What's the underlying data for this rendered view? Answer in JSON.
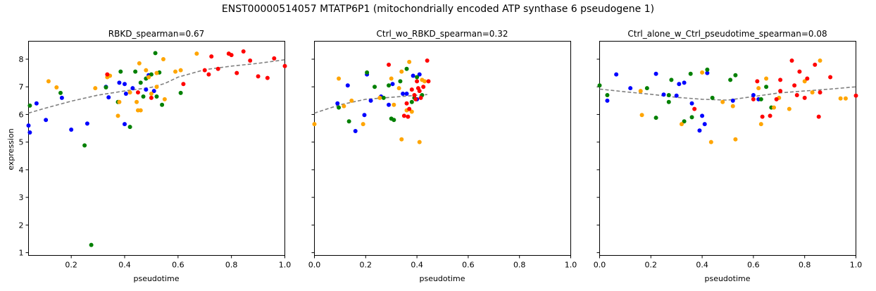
{
  "figure_title": "ENST00000514057  MTATP6P1  (mitochondrially encoded ATP synthase 6 pseudogene 1)",
  "colors": {
    "blue": "#0000ff",
    "green": "#008000",
    "orange": "#ffa500",
    "red": "#ff0000",
    "trend": "#808080"
  },
  "chart_data": [
    {
      "type": "scatter",
      "title": "RBKD_spearman=0.67",
      "xlabel": "pseudotime",
      "ylabel": "expression",
      "xlim": [
        0.04,
        1.0
      ],
      "ylim": [
        0.9,
        8.65
      ],
      "xticks": [
        "0.2",
        "0.4",
        "0.6",
        "0.8",
        "1.0"
      ],
      "xtick_values": [
        0.2,
        0.4,
        0.6,
        0.8,
        1.0
      ],
      "yticks": [
        "1",
        "2",
        "3",
        "4",
        "5",
        "6",
        "7",
        "8"
      ],
      "ytick_values": [
        1,
        2,
        3,
        4,
        5,
        6,
        7,
        8
      ],
      "grid": false,
      "series": [
        {
          "color": "blue",
          "points": [
            [
              0.04,
              5.6
            ],
            [
              0.045,
              5.35
            ],
            [
              0.07,
              6.4
            ],
            [
              0.105,
              5.8
            ],
            [
              0.165,
              6.6
            ],
            [
              0.2,
              5.45
            ],
            [
              0.26,
              5.67
            ],
            [
              0.33,
              7.0
            ],
            [
              0.34,
              6.62
            ],
            [
              0.38,
              7.15
            ],
            [
              0.4,
              7.1
            ],
            [
              0.4,
              5.65
            ],
            [
              0.405,
              6.75
            ],
            [
              0.43,
              6.95
            ],
            [
              0.48,
              6.9
            ],
            [
              0.49,
              7.42
            ],
            [
              0.51,
              6.85
            ]
          ]
        },
        {
          "color": "green",
          "points": [
            [
              0.045,
              6.32
            ],
            [
              0.16,
              6.78
            ],
            [
              0.25,
              4.88
            ],
            [
              0.275,
              1.28
            ],
            [
              0.33,
              6.98
            ],
            [
              0.375,
              6.45
            ],
            [
              0.385,
              7.55
            ],
            [
              0.42,
              5.55
            ],
            [
              0.44,
              7.55
            ],
            [
              0.46,
              7.15
            ],
            [
              0.47,
              6.65
            ],
            [
              0.48,
              7.3
            ],
            [
              0.5,
              7.45
            ],
            [
              0.515,
              8.22
            ],
            [
              0.52,
              6.65
            ],
            [
              0.53,
              7.52
            ],
            [
              0.54,
              6.35
            ],
            [
              0.61,
              6.78
            ]
          ]
        },
        {
          "color": "orange",
          "points": [
            [
              0.115,
              7.2
            ],
            [
              0.145,
              6.98
            ],
            [
              0.29,
              6.95
            ],
            [
              0.335,
              7.35
            ],
            [
              0.345,
              7.4
            ],
            [
              0.375,
              5.95
            ],
            [
              0.38,
              6.45
            ],
            [
              0.42,
              6.8
            ],
            [
              0.445,
              6.45
            ],
            [
              0.45,
              6.15
            ],
            [
              0.455,
              7.85
            ],
            [
              0.46,
              6.15
            ],
            [
              0.48,
              7.6
            ],
            [
              0.49,
              7.35
            ],
            [
              0.5,
              6.75
            ],
            [
              0.52,
              7.5
            ],
            [
              0.52,
              7.0
            ],
            [
              0.545,
              8.0
            ],
            [
              0.55,
              6.55
            ],
            [
              0.59,
              7.55
            ],
            [
              0.61,
              7.6
            ],
            [
              0.67,
              8.2
            ],
            [
              0.79,
              8.2
            ]
          ]
        },
        {
          "color": "red",
          "points": [
            [
              0.335,
              7.45
            ],
            [
              0.45,
              6.8
            ],
            [
              0.5,
              6.6
            ],
            [
              0.62,
              7.1
            ],
            [
              0.7,
              7.6
            ],
            [
              0.715,
              7.45
            ],
            [
              0.725,
              8.1
            ],
            [
              0.75,
              7.65
            ],
            [
              0.79,
              8.2
            ],
            [
              0.8,
              8.15
            ],
            [
              0.82,
              7.5
            ],
            [
              0.845,
              8.28
            ],
            [
              0.87,
              7.95
            ],
            [
              0.9,
              7.38
            ],
            [
              0.935,
              7.32
            ],
            [
              0.96,
              8.03
            ],
            [
              1.0,
              7.75
            ]
          ]
        }
      ],
      "trend": [
        [
          0.04,
          6.05
        ],
        [
          0.1,
          6.22
        ],
        [
          0.2,
          6.48
        ],
        [
          0.3,
          6.7
        ],
        [
          0.4,
          6.85
        ],
        [
          0.5,
          6.98
        ],
        [
          0.55,
          7.12
        ],
        [
          0.6,
          7.35
        ],
        [
          0.7,
          7.62
        ],
        [
          0.8,
          7.75
        ],
        [
          0.9,
          7.85
        ],
        [
          1.0,
          7.98
        ]
      ]
    },
    {
      "type": "scatter",
      "title": "Ctrl_wo_RBKD_spearman=0.32",
      "xlabel": "pseudotime",
      "ylabel": "",
      "xlim": [
        0.0,
        1.0
      ],
      "ylim": [
        0.9,
        8.65
      ],
      "xticks": [
        "0.0",
        "0.2",
        "0.4",
        "0.6",
        "0.8",
        "1.0"
      ],
      "xtick_values": [
        0.0,
        0.2,
        0.4,
        0.6,
        0.8,
        1.0
      ],
      "yticks": [],
      "ytick_values": [
        1,
        2,
        3,
        4,
        5,
        6,
        7,
        8
      ],
      "grid": false,
      "series": [
        {
          "color": "blue",
          "points": [
            [
              0.09,
              6.4
            ],
            [
              0.13,
              7.05
            ],
            [
              0.16,
              5.4
            ],
            [
              0.195,
              5.98
            ],
            [
              0.205,
              7.45
            ],
            [
              0.22,
              6.5
            ],
            [
              0.26,
              6.65
            ],
            [
              0.29,
              6.35
            ],
            [
              0.305,
              7.1
            ],
            [
              0.345,
              6.75
            ],
            [
              0.36,
              6.75
            ],
            [
              0.385,
              7.4
            ],
            [
              0.4,
              6.55
            ],
            [
              0.41,
              7.45
            ]
          ]
        },
        {
          "color": "green",
          "points": [
            [
              0.095,
              6.25
            ],
            [
              0.135,
              5.75
            ],
            [
              0.205,
              7.52
            ],
            [
              0.235,
              7.0
            ],
            [
              0.27,
              6.6
            ],
            [
              0.29,
              7.05
            ],
            [
              0.3,
              5.85
            ],
            [
              0.31,
              5.8
            ],
            [
              0.335,
              7.2
            ],
            [
              0.36,
              7.65
            ],
            [
              0.38,
              6.45
            ],
            [
              0.39,
              6.6
            ],
            [
              0.4,
              7.35
            ],
            [
              0.42,
              6.7
            ]
          ]
        },
        {
          "color": "orange",
          "points": [
            [
              0.0,
              5.65
            ],
            [
              0.095,
              7.3
            ],
            [
              0.115,
              6.3
            ],
            [
              0.145,
              6.5
            ],
            [
              0.19,
              5.65
            ],
            [
              0.255,
              6.6
            ],
            [
              0.3,
              7.3
            ],
            [
              0.31,
              6.35
            ],
            [
              0.33,
              6.95
            ],
            [
              0.34,
              7.55
            ],
            [
              0.34,
              5.1
            ],
            [
              0.36,
              6.15
            ],
            [
              0.37,
              7.9
            ],
            [
              0.38,
              6.1
            ],
            [
              0.41,
              5.0
            ],
            [
              0.42,
              7.25
            ],
            [
              0.43,
              7.2
            ]
          ]
        },
        {
          "color": "red",
          "points": [
            [
              0.29,
              7.8
            ],
            [
              0.35,
              5.95
            ],
            [
              0.36,
              6.4
            ],
            [
              0.365,
              5.92
            ],
            [
              0.37,
              6.2
            ],
            [
              0.38,
              6.9
            ],
            [
              0.39,
              6.7
            ],
            [
              0.395,
              6.55
            ],
            [
              0.4,
              7.2
            ],
            [
              0.405,
              6.95
            ],
            [
              0.41,
              6.85
            ],
            [
              0.415,
              6.6
            ],
            [
              0.425,
              7.0
            ],
            [
              0.44,
              7.95
            ],
            [
              0.445,
              7.2
            ]
          ]
        }
      ],
      "trend": [
        [
          0.0,
          6.05
        ],
        [
          0.1,
          6.35
        ],
        [
          0.2,
          6.55
        ],
        [
          0.3,
          6.62
        ],
        [
          0.38,
          6.68
        ],
        [
          0.44,
          6.72
        ]
      ]
    },
    {
      "type": "scatter",
      "title": "Ctrl_alone_w_Ctrl_pseudotime_spearman=0.08",
      "xlabel": "pseudotime",
      "ylabel": "",
      "xlim": [
        0.0,
        1.0
      ],
      "ylim": [
        0.9,
        8.65
      ],
      "xticks": [
        "0.0",
        "0.2",
        "0.4",
        "0.6",
        "0.8",
        "1.0"
      ],
      "xtick_values": [
        0.0,
        0.2,
        0.4,
        0.6,
        0.8,
        1.0
      ],
      "yticks": [],
      "ytick_values": [
        1,
        2,
        3,
        4,
        5,
        6,
        7,
        8
      ],
      "grid": false,
      "series": [
        {
          "color": "blue",
          "points": [
            [
              0.03,
              6.5
            ],
            [
              0.065,
              7.45
            ],
            [
              0.12,
              6.95
            ],
            [
              0.22,
              7.47
            ],
            [
              0.25,
              6.72
            ],
            [
              0.3,
              6.68
            ],
            [
              0.31,
              7.1
            ],
            [
              0.33,
              7.15
            ],
            [
              0.36,
              6.4
            ],
            [
              0.39,
              5.42
            ],
            [
              0.4,
              5.95
            ],
            [
              0.41,
              5.65
            ],
            [
              0.42,
              7.5
            ],
            [
              0.52,
              6.5
            ],
            [
              0.6,
              6.7
            ],
            [
              0.62,
              6.55
            ]
          ]
        },
        {
          "color": "green",
          "points": [
            [
              0.0,
              7.05
            ],
            [
              0.03,
              6.7
            ],
            [
              0.185,
              6.95
            ],
            [
              0.22,
              5.88
            ],
            [
              0.27,
              6.7
            ],
            [
              0.27,
              6.45
            ],
            [
              0.28,
              7.25
            ],
            [
              0.33,
              5.75
            ],
            [
              0.355,
              7.47
            ],
            [
              0.36,
              5.9
            ],
            [
              0.42,
              7.62
            ],
            [
              0.44,
              6.6
            ],
            [
              0.51,
              7.25
            ],
            [
              0.53,
              7.42
            ],
            [
              0.63,
              6.55
            ],
            [
              0.65,
              7.0
            ],
            [
              0.67,
              6.25
            ]
          ]
        },
        {
          "color": "orange",
          "points": [
            [
              0.16,
              6.85
            ],
            [
              0.165,
              5.98
            ],
            [
              0.32,
              5.65
            ],
            [
              0.4,
              7.52
            ],
            [
              0.435,
              5.0
            ],
            [
              0.48,
              6.45
            ],
            [
              0.52,
              6.3
            ],
            [
              0.53,
              5.1
            ],
            [
              0.62,
              6.95
            ],
            [
              0.63,
              5.65
            ],
            [
              0.65,
              7.3
            ],
            [
              0.68,
              6.25
            ],
            [
              0.7,
              6.6
            ],
            [
              0.74,
              6.2
            ],
            [
              0.8,
              7.2
            ],
            [
              0.83,
              6.8
            ],
            [
              0.86,
              7.95
            ],
            [
              0.94,
              6.58
            ],
            [
              0.96,
              6.58
            ]
          ]
        },
        {
          "color": "red",
          "points": [
            [
              0.37,
              6.2
            ],
            [
              0.6,
              6.55
            ],
            [
              0.615,
              7.2
            ],
            [
              0.635,
              5.92
            ],
            [
              0.665,
              5.95
            ],
            [
              0.69,
              6.55
            ],
            [
              0.705,
              6.85
            ],
            [
              0.705,
              7.25
            ],
            [
              0.75,
              7.95
            ],
            [
              0.76,
              7.05
            ],
            [
              0.77,
              6.7
            ],
            [
              0.78,
              7.55
            ],
            [
              0.8,
              6.6
            ],
            [
              0.81,
              7.3
            ],
            [
              0.84,
              7.8
            ],
            [
              0.855,
              5.92
            ],
            [
              0.86,
              6.8
            ],
            [
              0.9,
              7.35
            ],
            [
              1.0,
              6.68
            ]
          ]
        }
      ],
      "trend": [
        [
          0.0,
          6.92
        ],
        [
          0.1,
          6.82
        ],
        [
          0.2,
          6.73
        ],
        [
          0.3,
          6.62
        ],
        [
          0.4,
          6.55
        ],
        [
          0.5,
          6.52
        ],
        [
          0.6,
          6.65
        ],
        [
          0.7,
          6.78
        ],
        [
          0.8,
          6.85
        ],
        [
          0.9,
          6.92
        ],
        [
          1.0,
          7.0
        ]
      ]
    }
  ]
}
